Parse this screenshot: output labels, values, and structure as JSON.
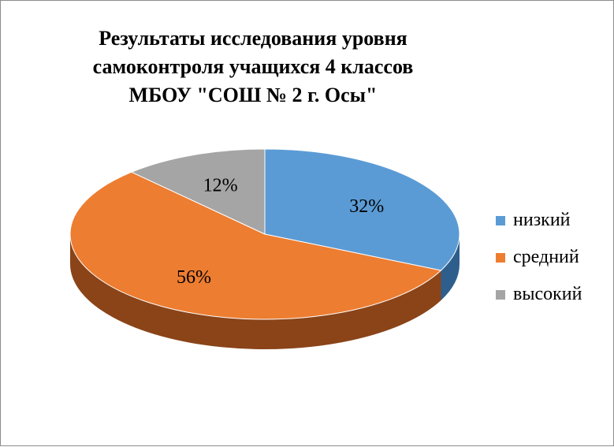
{
  "chart_data": {
    "type": "pie",
    "title_lines": [
      "Результаты исследования уровня",
      "самоконтроля учащихся 4 классов",
      "МБОУ \"СОШ № 2 г. Осы\""
    ],
    "categories": [
      "низкий",
      "средний",
      "высокий"
    ],
    "values": [
      32,
      56,
      12
    ],
    "labels": [
      "32%",
      "56%",
      "12%"
    ],
    "colors": [
      "#5b9bd5",
      "#ed7d31",
      "#a5a5a5"
    ],
    "side_colors": [
      "#2e5e8c",
      "#8a4418",
      "#6e6e6e"
    ],
    "legend_position": "right",
    "style": "3d-pie"
  }
}
